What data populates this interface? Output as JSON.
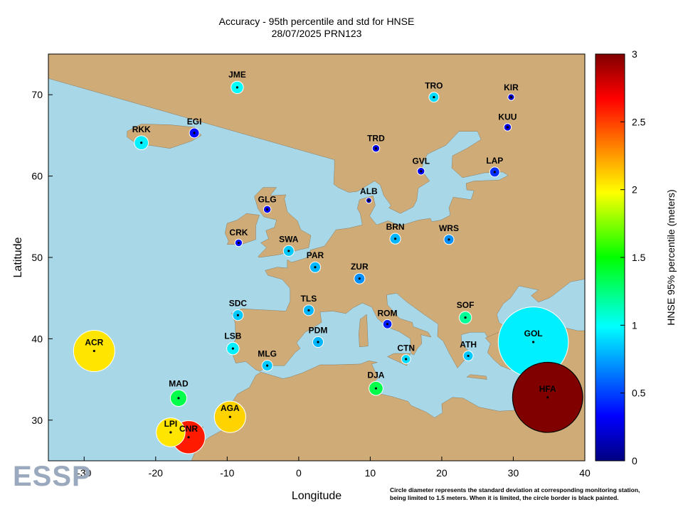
{
  "title_line1": "Accuracy - 95th percentile and std for HNSE",
  "title_line2": "28/07/2025 PRN123",
  "x_axis_label": "Longitude",
  "y_axis_label": "Latitude",
  "x_ticks": [
    "-30",
    "-20",
    "-10",
    "0",
    "10",
    "20",
    "30",
    "40"
  ],
  "y_ticks": [
    "30",
    "40",
    "50",
    "60",
    "70"
  ],
  "colorbar_label": "HNSE 95% percentile (meters)",
  "colorbar_ticks": [
    "0",
    "0.5",
    "1",
    "1.5",
    "2",
    "2.5",
    "3"
  ],
  "footnote_line1": "Circle diameter represents the standard deviation at corresponding monitoring station,",
  "footnote_line2": "being limited to 1.5 meters. When it is limited, the circle border is black painted.",
  "logo_text": "ESSP",
  "colors": {
    "sea": "#a8d8e8",
    "land": "#cfac77"
  },
  "map_extent": {
    "lon": [
      -35,
      40
    ],
    "lat": [
      25,
      75
    ]
  },
  "stations": [
    {
      "name": "JME",
      "lon": -8.6,
      "lat": 70.9,
      "hnse": 1.0,
      "std": 0.15,
      "limited": false
    },
    {
      "name": "TRO",
      "lon": 18.9,
      "lat": 69.7,
      "hnse": 0.9,
      "std": 0.12,
      "limited": false
    },
    {
      "name": "KIR",
      "lon": 29.7,
      "lat": 69.7,
      "hnse": 0.2,
      "std": 0.08,
      "limited": false
    },
    {
      "name": "EGI",
      "lon": -14.6,
      "lat": 65.3,
      "hnse": 0.35,
      "std": 0.12,
      "limited": false
    },
    {
      "name": "RKK",
      "lon": -22.0,
      "lat": 64.1,
      "hnse": 0.95,
      "std": 0.17,
      "limited": false
    },
    {
      "name": "KUU",
      "lon": 29.2,
      "lat": 66.0,
      "hnse": 0.25,
      "std": 0.09,
      "limited": false
    },
    {
      "name": "TRD",
      "lon": 10.8,
      "lat": 63.4,
      "hnse": 0.25,
      "std": 0.09,
      "limited": false
    },
    {
      "name": "GVL",
      "lon": 17.1,
      "lat": 60.6,
      "hnse": 0.3,
      "std": 0.09,
      "limited": false
    },
    {
      "name": "LAP",
      "lon": 27.4,
      "lat": 60.5,
      "hnse": 0.45,
      "std": 0.12,
      "limited": false
    },
    {
      "name": "ALB",
      "lon": 9.8,
      "lat": 57.0,
      "hnse": 0.15,
      "std": 0.06,
      "limited": false
    },
    {
      "name": "GLG",
      "lon": -4.4,
      "lat": 55.9,
      "hnse": 0.3,
      "std": 0.09,
      "limited": false
    },
    {
      "name": "CRK",
      "lon": -8.4,
      "lat": 51.8,
      "hnse": 0.35,
      "std": 0.09,
      "limited": false
    },
    {
      "name": "BRN",
      "lon": 13.5,
      "lat": 52.3,
      "hnse": 0.8,
      "std": 0.13,
      "limited": false
    },
    {
      "name": "WRS",
      "lon": 21.0,
      "lat": 52.2,
      "hnse": 0.7,
      "std": 0.12,
      "limited": false
    },
    {
      "name": "SWA",
      "lon": -1.4,
      "lat": 50.8,
      "hnse": 0.85,
      "std": 0.13,
      "limited": false
    },
    {
      "name": "PAR",
      "lon": 2.3,
      "lat": 48.8,
      "hnse": 0.8,
      "std": 0.13,
      "limited": false
    },
    {
      "name": "ZUR",
      "lon": 8.5,
      "lat": 47.4,
      "hnse": 0.7,
      "std": 0.13,
      "limited": false
    },
    {
      "name": "TLS",
      "lon": 1.4,
      "lat": 43.5,
      "hnse": 0.8,
      "std": 0.13,
      "limited": false
    },
    {
      "name": "SDC",
      "lon": -8.5,
      "lat": 42.9,
      "hnse": 0.85,
      "std": 0.13,
      "limited": false
    },
    {
      "name": "ROM",
      "lon": 12.4,
      "lat": 41.8,
      "hnse": 0.4,
      "std": 0.11,
      "limited": false
    },
    {
      "name": "SOF",
      "lon": 23.3,
      "lat": 42.6,
      "hnse": 1.2,
      "std": 0.15,
      "limited": false
    },
    {
      "name": "PDM",
      "lon": 2.7,
      "lat": 39.6,
      "hnse": 0.8,
      "std": 0.13,
      "limited": false
    },
    {
      "name": "LSB",
      "lon": -9.2,
      "lat": 38.8,
      "hnse": 0.95,
      "std": 0.15,
      "limited": false
    },
    {
      "name": "ACR",
      "lon": -28.6,
      "lat": 38.5,
      "hnse": 2.05,
      "std": 0.5,
      "limited": false
    },
    {
      "name": "GOL",
      "lon": 32.8,
      "lat": 39.6,
      "hnse": 0.95,
      "std": 0.85,
      "limited": false
    },
    {
      "name": "ATH",
      "lon": 23.7,
      "lat": 37.9,
      "hnse": 0.85,
      "std": 0.12,
      "limited": false
    },
    {
      "name": "MLG",
      "lon": -4.4,
      "lat": 36.7,
      "hnse": 0.85,
      "std": 0.13,
      "limited": false
    },
    {
      "name": "CTN",
      "lon": 15.0,
      "lat": 37.5,
      "hnse": 0.9,
      "std": 0.11,
      "limited": false
    },
    {
      "name": "DJA",
      "lon": 10.8,
      "lat": 33.9,
      "hnse": 1.35,
      "std": 0.17,
      "limited": false
    },
    {
      "name": "MAD",
      "lon": -16.8,
      "lat": 32.7,
      "hnse": 1.35,
      "std": 0.2,
      "limited": false
    },
    {
      "name": "HFA",
      "lon": 34.8,
      "lat": 32.8,
      "hnse": 3.0,
      "std": 0.85,
      "limited": true
    },
    {
      "name": "AGA",
      "lon": -9.6,
      "lat": 30.4,
      "hnse": 2.1,
      "std": 0.38,
      "limited": false
    },
    {
      "name": "LPI",
      "lon": -17.9,
      "lat": 28.5,
      "hnse": 2.05,
      "std": 0.35,
      "limited": false
    },
    {
      "name": "CNR",
      "lon": -15.4,
      "lat": 27.9,
      "hnse": 2.6,
      "std": 0.4,
      "limited": false
    }
  ]
}
